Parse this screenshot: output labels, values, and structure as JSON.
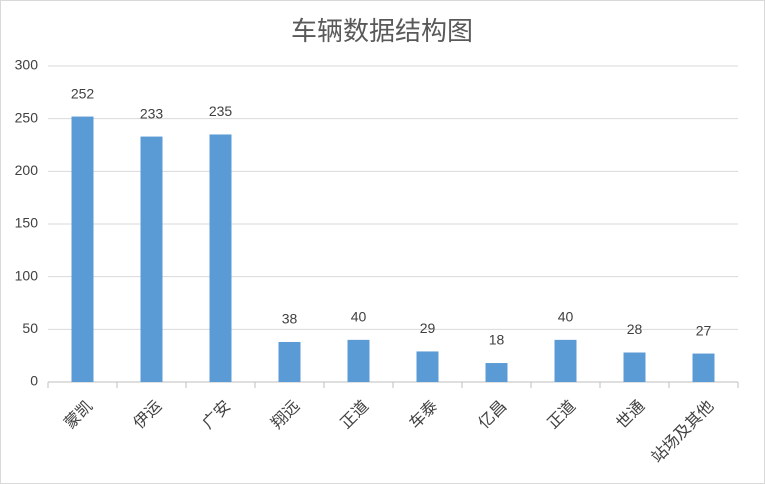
{
  "chart_data": {
    "type": "bar",
    "title": "车辆数据结构图",
    "categories": [
      "蒙凯",
      "伊运",
      "广安",
      "翔远",
      "正道",
      "车泰",
      "亿昌",
      "正道",
      "世通",
      "站场及其他"
    ],
    "values": [
      252,
      233,
      235,
      38,
      40,
      29,
      18,
      40,
      28,
      27
    ],
    "color": "#5b9bd5",
    "ylim": [
      0,
      300
    ],
    "yticks": [
      0,
      50,
      100,
      150,
      200,
      250,
      300
    ],
    "grid": true
  }
}
